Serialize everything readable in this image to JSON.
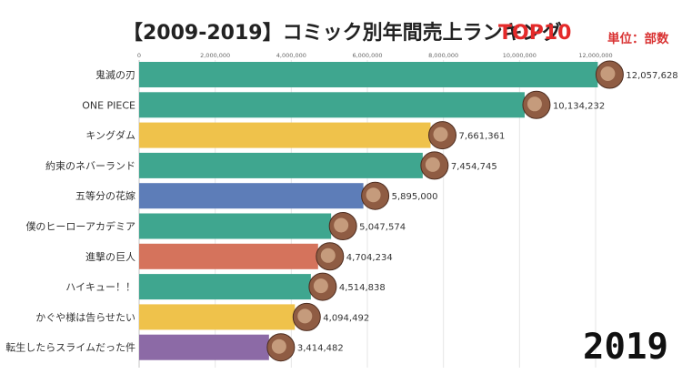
{
  "page": {
    "title_prefix": "【2009-2019】コミック別年間売上ランキング",
    "title_highlight": "TOP10",
    "unit_label": "単位：部数",
    "year": "2019"
  },
  "chart_data": {
    "type": "bar",
    "orientation": "horizontal",
    "categories": [
      "鬼滅の刃",
      "ONE PIECE",
      "キングダム",
      "約束のネバーランド",
      "五等分の花嫁",
      "僕のヒーローアカデミア",
      "進撃の巨人",
      "ハイキュー！！",
      "かぐや様は告らせたい",
      "転生したらスライムだった件"
    ],
    "values": [
      12057628,
      10134232,
      7661361,
      7454745,
      5895000,
      5047574,
      4704234,
      4514838,
      4094492,
      3414482
    ],
    "value_labels": [
      "12,057,628",
      "10,134,232",
      "7,661,361",
      "7,454,745",
      "5,895,000",
      "5,047,574",
      "4,704,234",
      "4,514,838",
      "4,094,492",
      "3,414,482"
    ],
    "bar_colors": [
      "#3fa68f",
      "#3fa68f",
      "#efc24b",
      "#3fa68f",
      "#5d7db8",
      "#3fa68f",
      "#d5735c",
      "#3fa68f",
      "#efc24b",
      "#8c6aa6"
    ],
    "xlim": [
      0,
      12000000
    ],
    "ticks": [
      0,
      2000000,
      4000000,
      6000000,
      8000000,
      10000000,
      12000000
    ],
    "tick_labels": [
      "0",
      "2,000,000",
      "4,000,000",
      "6,000,000",
      "8,000,000",
      "10,000,000",
      "12,000,000"
    ],
    "grid": true
  },
  "colors": {
    "title_text": "#222222",
    "title_highlight": "#e42a2a",
    "unit_text": "#d93232",
    "grid": "#e6e6e6",
    "axis_text": "#666666",
    "label_text": "#333333"
  }
}
